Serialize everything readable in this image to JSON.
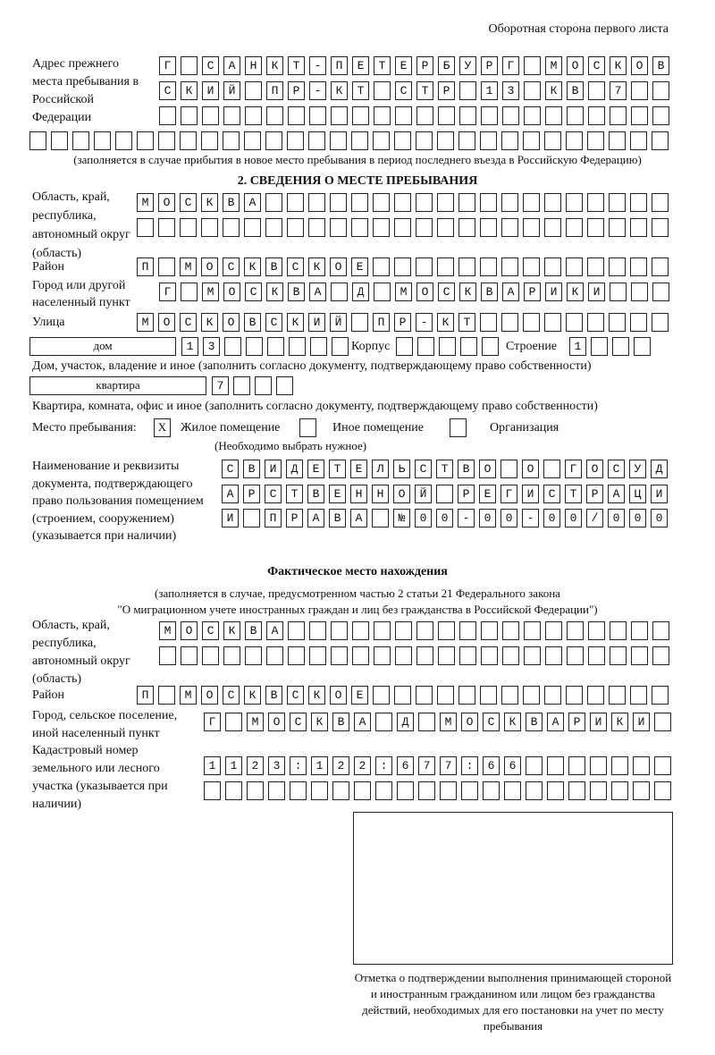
{
  "page_side": "Оборотная сторона первого листа",
  "previous_address": {
    "label": "Адрес прежнего места пребывания в Российской Федерации",
    "rows": [
      "Г САНКТ-ПЕТЕРБУРГ МОСКОВ",
      "СКИЙ ПР-КТ СТР 13 КВ 7",
      "",
      ""
    ],
    "note": "(заполняется в случае прибытия в новое место пребывания в период последнего въезда в Российскую Федерацию)"
  },
  "section2": {
    "title": "2. СВЕДЕНИЯ О МЕСТЕ ПРЕБЫВАНИЯ",
    "region_label": "Область, край, республика, автономный округ (область)",
    "region_rows": [
      "МОСКВА",
      ""
    ],
    "district_label": "Район",
    "district": "П МОСКВСКОЕ",
    "city_label": "Город или другой населенный пункт",
    "city": "Г МОСКВА Д МОСКВАРИКИ",
    "street_label": "Улица",
    "street": "МОСКОВСКИЙ ПР-КТ",
    "house_type": "дом",
    "house_number": "13",
    "building_label": "Корпус",
    "building": "",
    "structure_label": "Строение",
    "structure": "1",
    "house_note": "Дом, участок, владение и иное (заполнить согласно документу, подтверждающему право собственности)",
    "apartment_type": "квартира",
    "apartment_number": "7",
    "apartment_note": "Квартира, комната, офис и иное (заполнить согласно документу, подтверждающему право собственности)",
    "stay_place_label": "Место пребывания:",
    "options": [
      {
        "mark": "X",
        "label": "Жилое помещение"
      },
      {
        "mark": "",
        "label": "Иное помещение"
      },
      {
        "mark": "",
        "label": "Организация"
      }
    ],
    "choose_note": "(Необходимо выбрать нужное)",
    "document_label": "Наименование и реквизиты документа, подтверждающего право пользования помещением (строением, сооружением) (указывается при наличии)",
    "document_rows": [
      "СВИДЕТЕЛЬСТВО О ГОСУД",
      "АРСТВЕННОЙ РЕГИСТРАЦИ",
      "И ПРАВА №00-00-00/000"
    ]
  },
  "actual": {
    "title": "Фактическое место нахождения",
    "note1": "(заполняется в случае, предусмотренном частью 2 статьи 21 Федерального закона",
    "note2": "\"О миграционном учете иностранных граждан и лиц без гражданства в Российской Федерации\")",
    "region_label": "Область, край, республика, автономный округ (область)",
    "region_rows": [
      "МОСКВА",
      ""
    ],
    "district_label": "Район",
    "district": "П МОСКВСКОЕ",
    "city_label": "Город, сельское поселение, иной населенный пункт",
    "city": "Г МОСКВА Д МОСКВАРИКИ",
    "cadastre_label": "Кадастровый номер земельного или лесного участка (указывается при наличии)",
    "cadastre_rows": [
      "1123:122:677:66",
      ""
    ]
  },
  "confirmation": {
    "caption": "Отметка о подтверждении выполнения принимающей стороной и иностранным гражданином или лицом без гражданства действий, необходимых для его постановки на учет по месту пребывания"
  }
}
